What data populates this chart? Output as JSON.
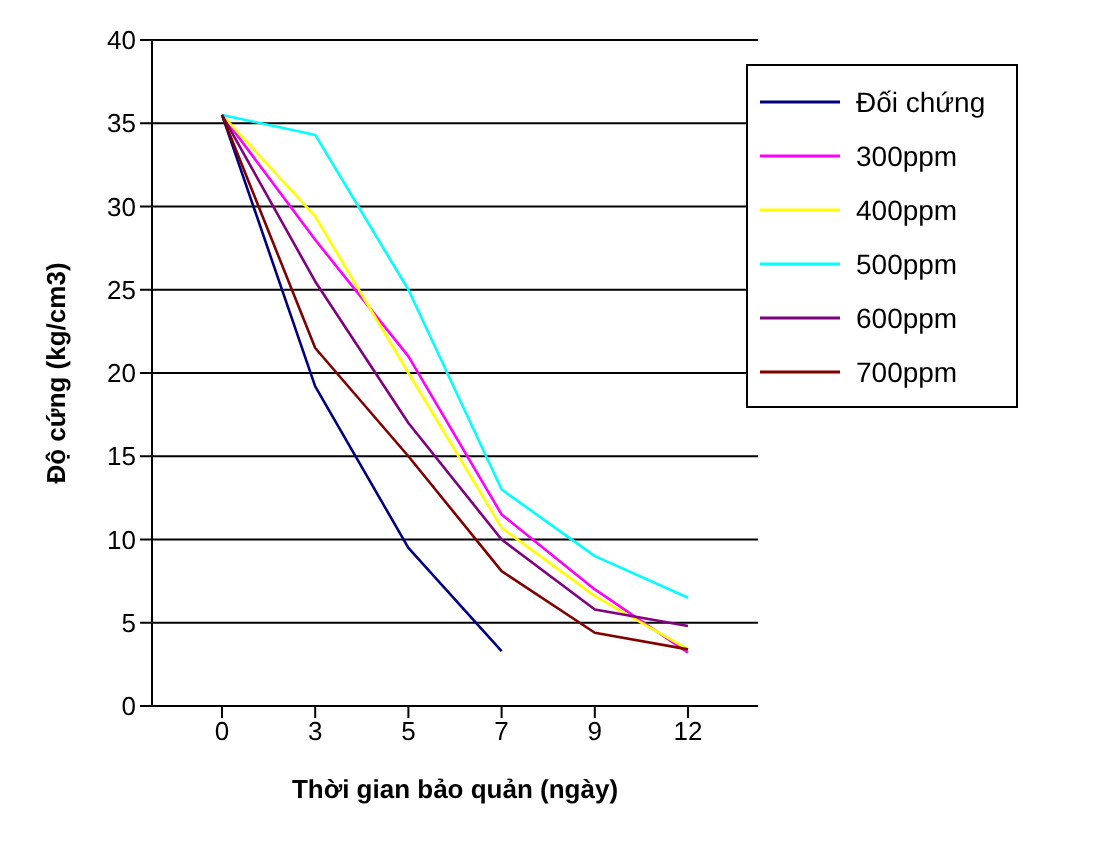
{
  "chart_data": {
    "type": "line",
    "xlabel": "Thời gian bảo quản (ngày)",
    "ylabel": "Độ cứng (kg/cm3)",
    "categories": [
      "0",
      "3",
      "5",
      "7",
      "9",
      "12"
    ],
    "series": [
      {
        "name": "Đối chứng",
        "color": "#000080",
        "values": [
          35.5,
          19.2,
          9.5,
          3.3,
          null,
          null
        ]
      },
      {
        "name": "300ppm",
        "color": "#ff00ff",
        "values": [
          35.5,
          28,
          21,
          11.5,
          7,
          3.2
        ]
      },
      {
        "name": "400ppm",
        "color": "#ffff00",
        "values": [
          35.5,
          29.4,
          20,
          10.7,
          6.6,
          3.4
        ]
      },
      {
        "name": "500ppm",
        "color": "#00ffff",
        "values": [
          35.5,
          34.3,
          25,
          13,
          9,
          6.5
        ]
      },
      {
        "name": "600ppm",
        "color": "#800080",
        "values": [
          35.5,
          25.5,
          17,
          10,
          5.8,
          4.8
        ]
      },
      {
        "name": "700ppm",
        "color": "#800000",
        "values": [
          35.5,
          21.5,
          15,
          8.1,
          4.4,
          3.4
        ]
      }
    ],
    "ylim": [
      0,
      40
    ],
    "yticks": [
      0,
      5,
      10,
      15,
      20,
      25,
      30,
      35,
      40
    ],
    "grid": "y",
    "legend": "top right",
    "marker": "none",
    "line_style": "solid"
  }
}
